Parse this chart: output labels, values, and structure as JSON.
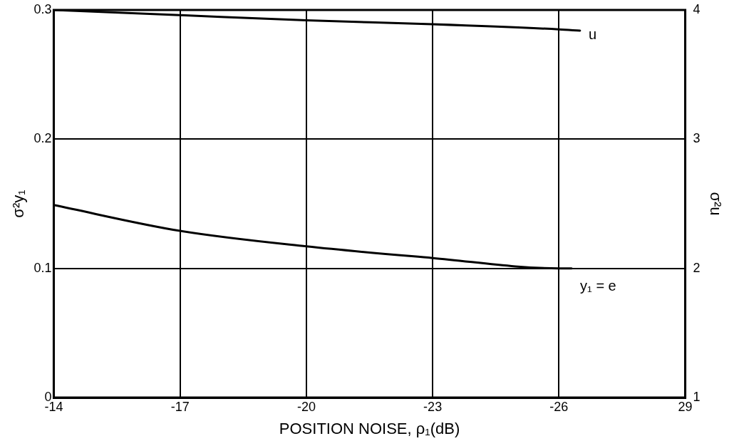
{
  "chart_data": {
    "type": "line",
    "xlabel": "POSITION NOISE, ρ₁(dB)",
    "ylabel": "σ²y₁",
    "y2label": "σ²u",
    "xlim": [
      -14,
      -29
    ],
    "xticks": [
      -14,
      -17,
      -20,
      -23,
      -26,
      {
        "value": -29,
        "label": "29"
      }
    ],
    "ylim": [
      0,
      0.3
    ],
    "yticks": [
      0,
      0.1,
      0.2,
      0.3
    ],
    "y2lim": [
      1,
      4
    ],
    "y2ticks": [
      1,
      2,
      3,
      4
    ],
    "grid": true,
    "legend": false,
    "marker": "none",
    "line_style": "solid",
    "series": [
      {
        "name": "u",
        "color": "#000000",
        "axis": "y2",
        "x": [
          -14,
          -17,
          -20,
          -23,
          -26,
          -26.5
        ],
        "values": [
          4.0,
          3.96,
          3.92,
          3.89,
          3.85,
          3.84
        ]
      },
      {
        "name": "y₁ = e",
        "color": "#000000",
        "axis": "y",
        "x": [
          -14,
          -17,
          -20,
          -23,
          -26,
          -26.3
        ],
        "values": [
          0.149,
          0.129,
          0.117,
          0.108,
          0.1,
          0.1
        ]
      }
    ]
  }
}
